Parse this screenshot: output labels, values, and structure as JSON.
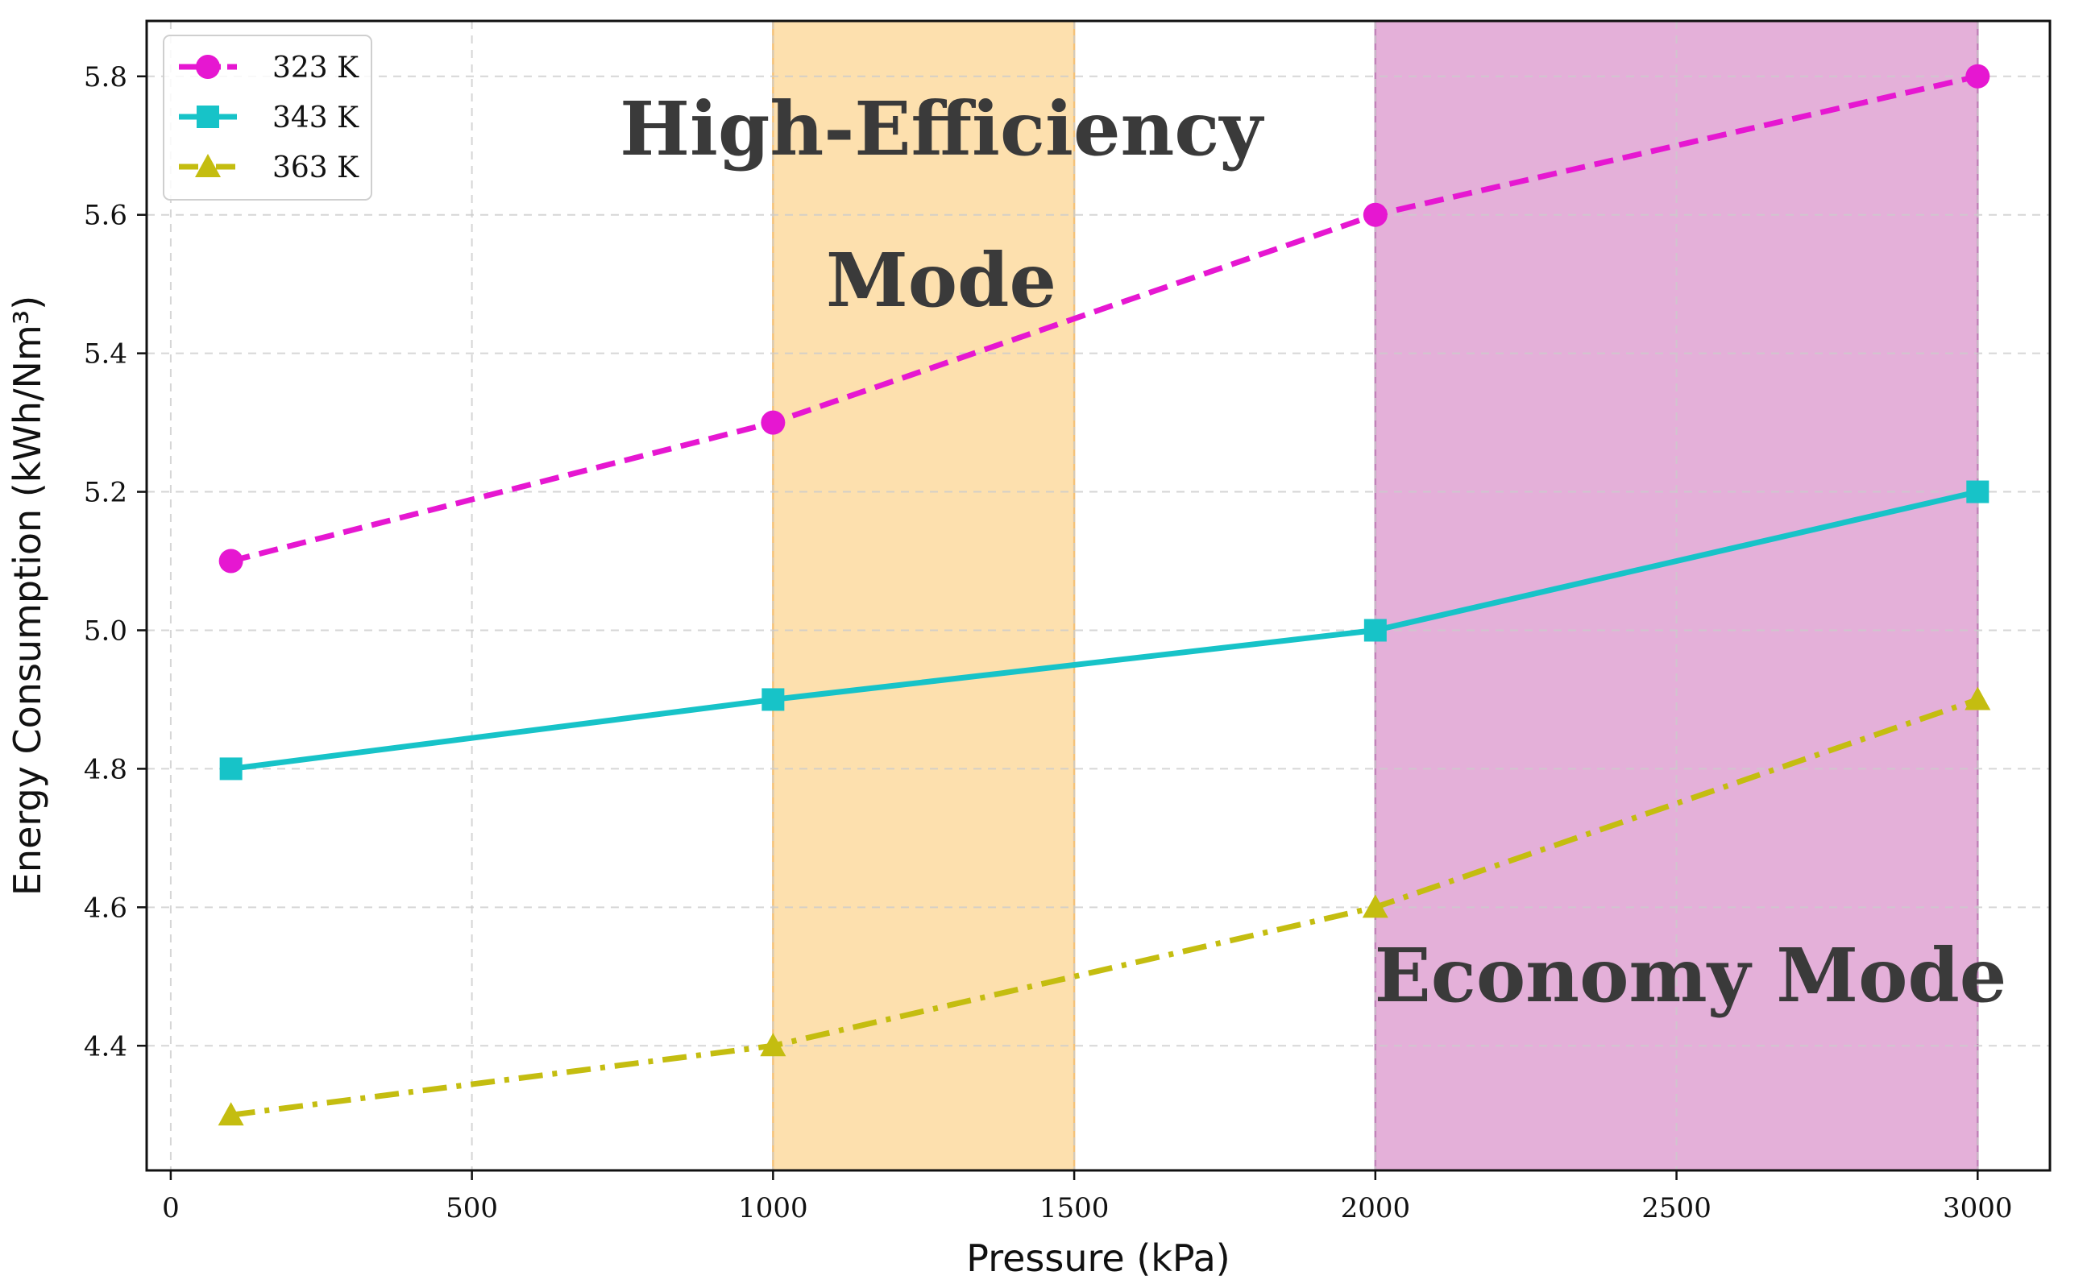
{
  "chart_data": {
    "type": "line",
    "title": "",
    "xlabel": "Pressure (kPa)",
    "ylabel": "Energy Consumption (kWh/Nm³)",
    "xlim": [
      -40,
      3120
    ],
    "ylim": [
      4.22,
      5.88
    ],
    "xticks": [
      0,
      500,
      1000,
      1500,
      2000,
      2500,
      3000
    ],
    "yticks": [
      4.4,
      4.6,
      4.8,
      5.0,
      5.2,
      5.4,
      5.6,
      5.8
    ],
    "xtick_labels": [
      "0",
      "500",
      "1000",
      "1500",
      "2000",
      "2500",
      "3000"
    ],
    "ytick_labels": [
      "4.4",
      "4.6",
      "4.8",
      "5.0",
      "5.2",
      "5.4",
      "5.6",
      "5.8"
    ],
    "grid": true,
    "legend_position": "top-left",
    "series": [
      {
        "name": "323 K",
        "x": [
          100,
          1000,
          2000,
          3000
        ],
        "values": [
          5.1,
          5.3,
          5.6,
          5.8
        ],
        "color": "#e617d1",
        "marker": "circle",
        "linestyle": "dashed"
      },
      {
        "name": "343 K",
        "x": [
          100,
          1000,
          2000,
          3000
        ],
        "values": [
          4.8,
          4.9,
          5.0,
          5.2
        ],
        "color": "#17c3c8",
        "marker": "square",
        "linestyle": "solid"
      },
      {
        "name": "363 K",
        "x": [
          100,
          1000,
          2000,
          3000
        ],
        "values": [
          4.3,
          4.4,
          4.6,
          4.9
        ],
        "color": "#c4bd10",
        "marker": "triangle",
        "linestyle": "dashdot"
      }
    ],
    "regions": [
      {
        "name": "High-Efficiency Mode",
        "label_lines": [
          "High-Efficiency",
          "Mode"
        ],
        "x_start": 1000,
        "x_end": 1500,
        "color": "#fde0ae",
        "edge_color": "#f4c27a"
      },
      {
        "name": "Economy Mode",
        "label_lines": [
          "Economy Mode"
        ],
        "x_start": 2000,
        "x_end": 3000,
        "color": "#e4b0d9",
        "edge_color": "#c083b8"
      }
    ]
  }
}
